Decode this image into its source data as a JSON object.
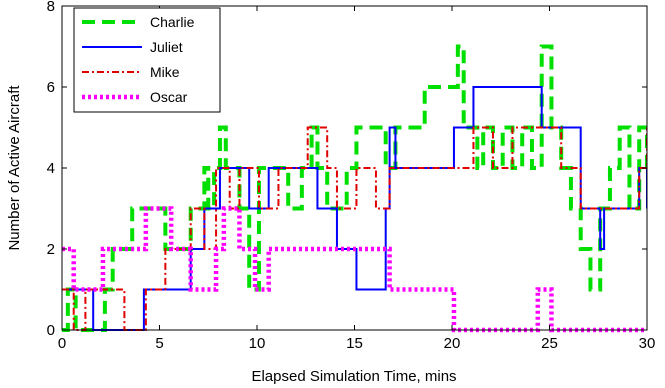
{
  "chart_data": {
    "type": "line",
    "line_shape": "step",
    "title": "",
    "xlabel": "Elapsed Simulation Time, mins",
    "ylabel": "Number of Active Aircraft",
    "xlim": [
      0,
      30
    ],
    "ylim": [
      0,
      8
    ],
    "xticks": [
      0,
      5,
      10,
      15,
      20,
      25,
      30
    ],
    "yticks": [
      0,
      2,
      4,
      6,
      8
    ],
    "grid": false,
    "legend_position": "top-left",
    "series": [
      {
        "name": "Charlie",
        "color": "#00e000",
        "style": "dashed",
        "x": [
          0,
          0.3,
          0.7,
          2.2,
          2.6,
          3.1,
          3.6,
          4.3,
          5.3,
          6.6,
          7.3,
          7.5,
          7.8,
          8.1,
          8.4,
          9.1,
          9.6,
          10.1,
          11.6,
          12.3,
          12.8,
          13.1,
          13.6,
          14.6,
          15.1,
          16.3,
          16.6,
          17.1,
          17.6,
          18.6,
          19.6,
          20.3,
          20.6,
          21.3,
          21.6,
          22.1,
          22.6,
          23.1,
          23.6,
          24.1,
          24.6,
          25.1,
          25.6,
          26.1,
          26.6,
          27.1,
          27.6,
          28.1,
          28.6,
          29.1,
          29.6,
          30
        ],
        "y": [
          0,
          1,
          0,
          1,
          2,
          2,
          3,
          3,
          2,
          3,
          4,
          3,
          4,
          5,
          4,
          3,
          1,
          4,
          3,
          4,
          5,
          4,
          3,
          4,
          5,
          5,
          4,
          5,
          5,
          6,
          6,
          7,
          5,
          4,
          5,
          4,
          5,
          4,
          5,
          4,
          7,
          5,
          4,
          3,
          2,
          1,
          3,
          4,
          5,
          3,
          5,
          4
        ]
      },
      {
        "name": "Juliet",
        "color": "#0000ff",
        "style": "solid",
        "x": [
          0,
          1.6,
          4.2,
          4.7,
          6.1,
          6.6,
          7.3,
          8.1,
          9.6,
          10.6,
          11.1,
          13.1,
          14.1,
          15.1,
          16.6,
          16.8,
          17.1,
          19.1,
          20.1,
          21.1,
          22.6,
          23.6,
          24.6,
          26.6,
          27.1,
          27.6,
          27.8,
          28.6,
          29.6,
          30
        ],
        "y": [
          1,
          0,
          1,
          1,
          1,
          2,
          3,
          4,
          3,
          4,
          4,
          3,
          2,
          1,
          3,
          5,
          4,
          4,
          5,
          6,
          6,
          6,
          5,
          3,
          3,
          2,
          3,
          3,
          4,
          3
        ]
      },
      {
        "name": "Mike",
        "color": "#e00000",
        "style": "dashdot",
        "x": [
          0,
          0.6,
          1.2,
          3.2,
          4.3,
          5.3,
          6.6,
          7.3,
          7.9,
          8.6,
          9.1,
          10.1,
          11.1,
          12.1,
          12.6,
          13.6,
          14.1,
          15.1,
          16.1,
          16.8,
          17.1,
          18.6,
          20.1,
          21.1,
          22.1,
          23.1,
          24.6,
          25.6,
          26.6,
          27.6,
          28.6,
          29.6,
          30
        ],
        "y": [
          1,
          0,
          1,
          0,
          1,
          2,
          3,
          2,
          4,
          3,
          4,
          3,
          4,
          4,
          5,
          4,
          3,
          4,
          3,
          4,
          4,
          4,
          4,
          5,
          4,
          5,
          5,
          4,
          3,
          3,
          3,
          4,
          5
        ]
      },
      {
        "name": "Oscar",
        "color": "#ff00ff",
        "style": "dotted",
        "x": [
          0,
          0.6,
          1.2,
          2.1,
          3.2,
          4.3,
          4.7,
          5.6,
          6.6,
          7.9,
          8.3,
          9.1,
          9.9,
          10.6,
          11.6,
          12.6,
          13.1,
          14.1,
          15.1,
          16.1,
          16.6,
          16.8,
          17.6,
          20.1,
          21.1,
          23.1,
          24.4,
          25.1,
          30
        ],
        "y": [
          2,
          1,
          1,
          2,
          2,
          3,
          3,
          2,
          1,
          2,
          3,
          2,
          1,
          2,
          2,
          2,
          2,
          2,
          2,
          2,
          2,
          1,
          1,
          0,
          0,
          0,
          1,
          0,
          0
        ]
      }
    ]
  }
}
